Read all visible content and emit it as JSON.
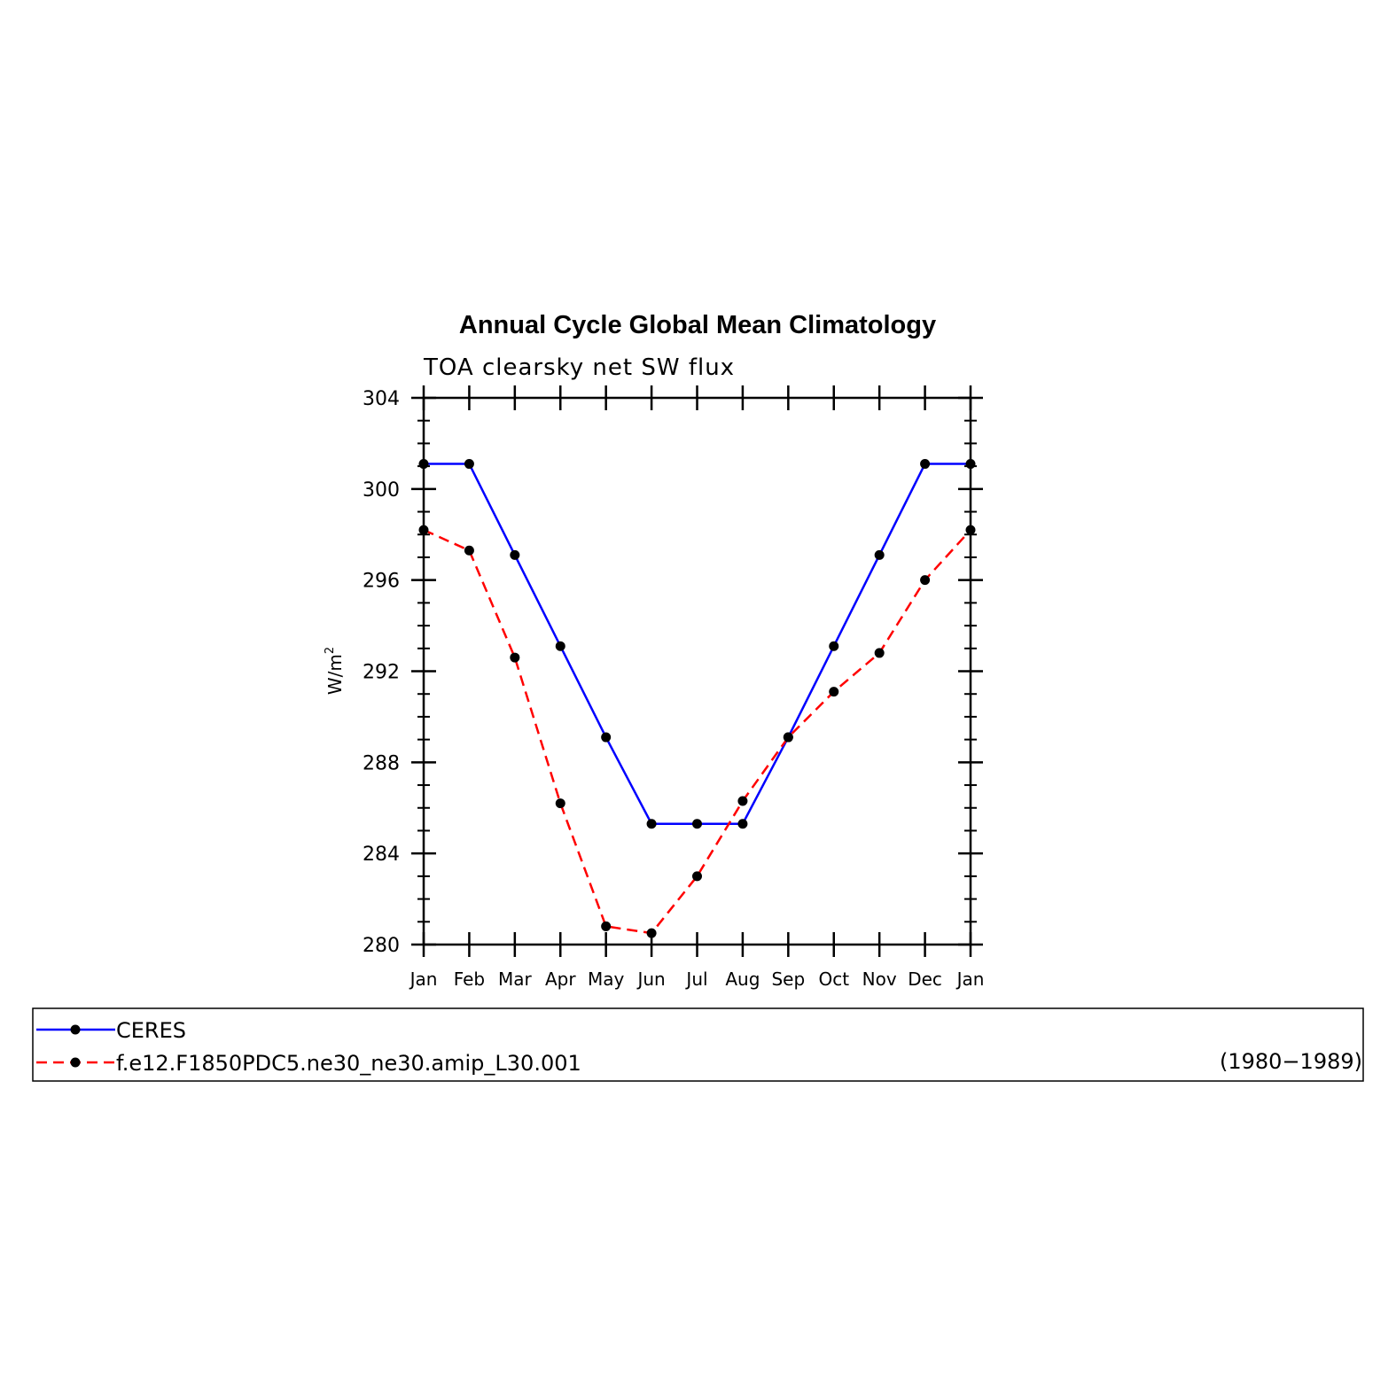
{
  "chart_data": {
    "type": "line",
    "title": "Annual Cycle Global Mean Climatology",
    "subtitle": "TOA clearsky net SW flux",
    "ylabel": "W/m",
    "ylabel_superscript": "2",
    "ylim": [
      280,
      304
    ],
    "yticks": [
      280,
      284,
      288,
      292,
      296,
      300,
      304
    ],
    "yminor_step": 1,
    "categories": [
      "Jan",
      "Feb",
      "Mar",
      "Apr",
      "May",
      "Jun",
      "Jul",
      "Aug",
      "Sep",
      "Oct",
      "Nov",
      "Dec",
      "Jan"
    ],
    "grid": false,
    "legend_position": "bottom",
    "series": [
      {
        "name": "CERES",
        "color": "#0000ff",
        "dash": "solid",
        "marker": "dot",
        "values": [
          301.1,
          301.1,
          297.1,
          293.1,
          289.1,
          285.3,
          285.3,
          285.3,
          289.1,
          293.1,
          297.1,
          301.1,
          301.1
        ]
      },
      {
        "name": "f.e12.F1850PDC5.ne30_ne30.amip_L30.001",
        "color": "#ff0000",
        "dash": "dashed",
        "marker": "dot",
        "values": [
          298.2,
          297.3,
          292.6,
          286.2,
          280.8,
          280.5,
          283.0,
          286.3,
          289.1,
          291.1,
          292.8,
          296.0,
          298.2
        ]
      }
    ],
    "legend_note": "(1980−1989)"
  }
}
